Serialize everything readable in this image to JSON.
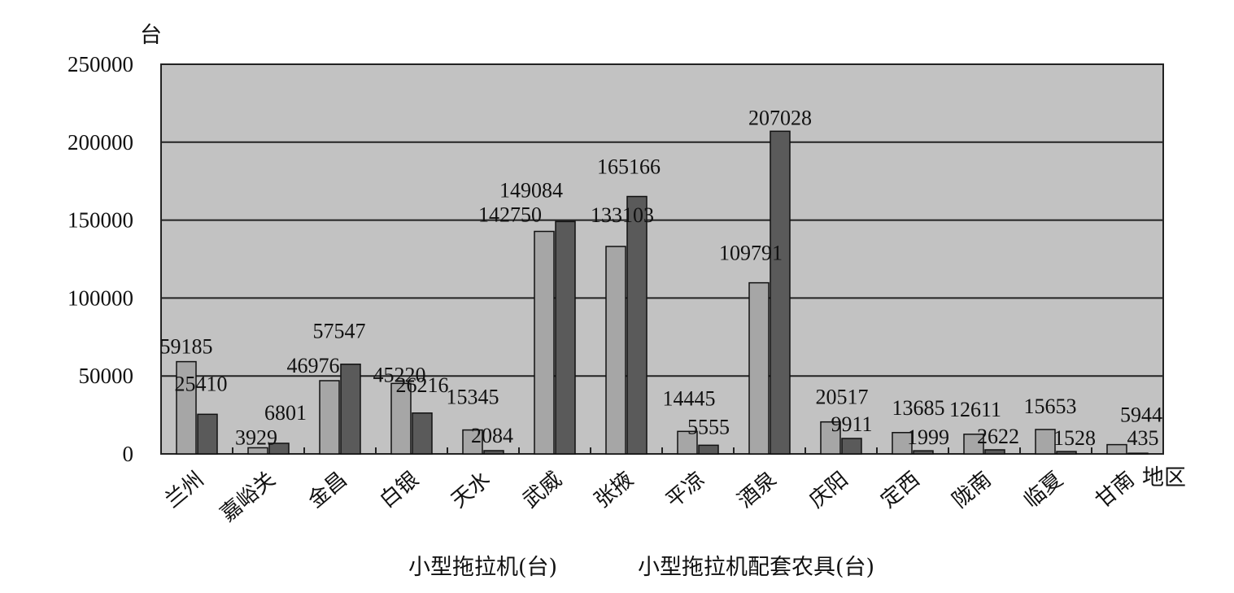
{
  "chart_data": {
    "type": "bar",
    "title": "",
    "ylabel": "台",
    "xlabel": "地区",
    "ylim": [
      0,
      250000
    ],
    "yticks": [
      "0",
      "50000",
      "100000",
      "150000",
      "200000",
      "250000"
    ],
    "grid": true,
    "legend_placement": "bottom",
    "categories": [
      "兰州",
      "嘉峪关",
      "金昌",
      "白银",
      "天水",
      "武威",
      "张掖",
      "平凉",
      "酒泉",
      "庆阳",
      "定西",
      "陇南",
      "临夏",
      "甘南"
    ],
    "series": [
      {
        "name": "小型拖拉机(台)",
        "color": "#a6a6a6",
        "values": [
          59185,
          3929,
          46976,
          45220,
          15345,
          142750,
          133103,
          14445,
          109791,
          20517,
          13685,
          12611,
          15653,
          5944
        ],
        "labels": [
          "59185",
          "3929",
          "46976",
          "45220",
          "15345",
          "142750",
          "133103",
          "14445",
          "109791",
          "20517",
          "13685",
          "12611",
          "15653",
          "5944"
        ]
      },
      {
        "name": "小型拖拉机配套农具(台)",
        "color": "#5a5a5a",
        "values": [
          25410,
          6801,
          57547,
          26216,
          2084,
          149084,
          165166,
          5555,
          207028,
          9911,
          1999,
          2622,
          1528,
          435
        ],
        "labels": [
          "25410",
          "6801",
          "57547",
          "26216",
          "2084",
          "149084",
          "165166",
          "5555",
          "207028",
          "9911",
          "1999",
          "2622",
          "1528",
          "435"
        ]
      }
    ]
  }
}
